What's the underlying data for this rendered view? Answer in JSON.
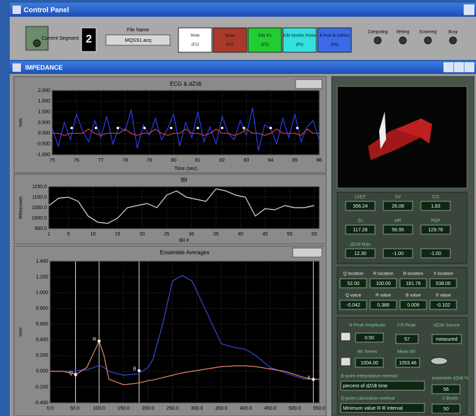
{
  "control_panel": {
    "title": "Control Panel",
    "segment_label": "Current Segment",
    "segment": "2",
    "file_name_label": "File Name",
    "file_name": "MQSS1.acq",
    "buttons": [
      {
        "label": "Write",
        "key": "(F2)",
        "color": "#ffffff"
      },
      {
        "label": "Erase",
        "key": "(F3)",
        "color": "#a83a2c"
      },
      {
        "label": "Edit X's",
        "key": "(F5)",
        "color": "#22cc33"
      },
      {
        "label": "Edit Systolic Points",
        "key": "(F6)",
        "color": "#33e0e0"
      },
      {
        "label": "R Peak & Artifact",
        "key": "(F8)",
        "color": "#3a6ae8"
      }
    ],
    "status": [
      "Computing",
      "Writing",
      "Scanning",
      "Busy"
    ]
  },
  "impedance": {
    "title": "IMPEDANCE",
    "readouts": [
      {
        "label": "LVET",
        "value": "356.24"
      },
      {
        "label": "SV",
        "value": "26.08"
      },
      {
        "label": "CO",
        "value": "1.83"
      },
      {
        "label": "Zo",
        "value": "117.28"
      },
      {
        "label": "HR",
        "value": "56.95"
      },
      {
        "label": "PEP",
        "value": "129.76"
      },
      {
        "label": "dZ/dt Max",
        "value": "12.30"
      },
      {
        "value": "-1.00"
      },
      {
        "value": "-1.00"
      }
    ],
    "locations": [
      {
        "label": "Q location",
        "value": "52.00"
      },
      {
        "label": "R location",
        "value": "100.00"
      },
      {
        "label": "B location",
        "value": "181.76"
      },
      {
        "label": "X location",
        "value": "538.00"
      },
      {
        "label": "Q value",
        "value": "-0.042"
      },
      {
        "label": "R value",
        "value": "0.386"
      },
      {
        "label": "B value",
        "value": "0.009"
      },
      {
        "label": "X value",
        "value": "-0.102"
      }
    ],
    "settings": [
      {
        "label": "R Peak Amplitude",
        "value": "0.50"
      },
      {
        "label": "# R Peak",
        "value": "57"
      },
      {
        "label": "dZ/dt Source",
        "value": "measured"
      },
      {
        "label": "IBI Series",
        "value": "1004.00"
      },
      {
        "label": "Mean IBI",
        "value": "1053.46"
      },
      {
        "label": "B-point interpolation method",
        "value": "percent of dZ/dt time"
      },
      {
        "label": "Q-point calculation method",
        "value": "Minimum value R-R interval"
      },
      {
        "label": "ensemble dZ/dt %",
        "value": "56"
      },
      {
        "label": "# Beats",
        "value": "50"
      }
    ]
  },
  "chart_data": [
    {
      "type": "line",
      "title": "ECG & dZ/dt",
      "ylabel": "Volts",
      "xlabel": "Time (sec)",
      "xlim": [
        75,
        86
      ],
      "xticks": [
        75,
        76,
        77,
        78,
        79,
        80,
        81,
        82,
        83,
        84,
        85,
        86
      ],
      "ylim": [
        -1,
        2
      ],
      "yticks": [
        {
          "value": -1,
          "label": "-1.000"
        },
        {
          "value": -0.5,
          "label": "-0.500"
        },
        {
          "value": 0,
          "label": "0.000"
        },
        {
          "value": 0.5,
          "label": "0.500"
        },
        {
          "value": 1,
          "label": "1.000"
        },
        {
          "value": 1.5,
          "label": "1.500"
        },
        {
          "value": 2,
          "label": "2.000"
        }
      ],
      "x": [
        75,
        75.25,
        75.5,
        75.75,
        76,
        76.25,
        76.5,
        76.75,
        77,
        77.25,
        77.5,
        77.75,
        78,
        78.25,
        78.5,
        78.75,
        79,
        79.25,
        79.5,
        79.75,
        80,
        80.25,
        80.5,
        80.75,
        81,
        81.25,
        81.5,
        81.75,
        82,
        82.25,
        82.5,
        82.75,
        83,
        83.25,
        83.5,
        83.75,
        84,
        84.25,
        84.5,
        84.75,
        85,
        85.25,
        85.5,
        85.75,
        86
      ],
      "series": [
        {
          "color": "#2a3cf0",
          "values": [
            0.2,
            -0.6,
            0.5,
            -0.3,
            0.9,
            0.1,
            -0.4,
            0.6,
            -0.2,
            0.8,
            -0.5,
            0.3,
            0.1,
            1.1,
            -0.7,
            0.4,
            -0.1,
            0.7,
            -0.3,
            0.2,
            0.9,
            -0.6,
            0.5,
            -0.2,
            1.0,
            -0.4,
            0.3,
            -0.5,
            0.8,
            0.0,
            -0.3,
            0.6,
            -0.1,
            1.2,
            -0.8,
            0.4,
            0.2,
            -0.5,
            0.7,
            -0.2,
            0.9,
            -0.4,
            0.3,
            0.6,
            -0.3
          ]
        },
        {
          "color": "#d04030",
          "values": [
            0,
            0,
            -0.1,
            0,
            0,
            0,
            0.2,
            0,
            -0.1,
            0,
            0,
            0,
            0.2,
            0,
            -0.1,
            0,
            0,
            0.2,
            0,
            -0.1,
            0,
            0,
            0.2,
            0,
            0,
            -0.1,
            0,
            0.2,
            0,
            0,
            -0.1,
            0,
            0.2,
            0,
            0,
            -0.1,
            0,
            0.2,
            0,
            0,
            0,
            -0.1,
            0.2,
            0,
            0
          ]
        }
      ],
      "points": {
        "color": "#ffffff",
        "x": [
          75.8,
          76.8,
          77.7,
          78.8,
          79.9,
          81.0,
          82.0,
          82.9,
          84.0,
          85.1
        ],
        "y": [
          0.25,
          0.25,
          0.25,
          0.25,
          0.25,
          0.25,
          0.25,
          0.25,
          0.25,
          0.25
        ]
      }
    },
    {
      "type": "line",
      "title": "IBI",
      "ylabel": "Milliseconds",
      "xlabel": "IBI #",
      "xlim": [
        1,
        56
      ],
      "xticks": [
        1,
        5,
        10,
        15,
        20,
        25,
        30,
        35,
        40,
        45,
        50,
        55
      ],
      "ylim": [
        950,
        1150
      ],
      "yticks": [
        {
          "value": 950,
          "label": "950.0"
        },
        {
          "value": 1000,
          "label": "1000.0"
        },
        {
          "value": 1050,
          "label": "1050.0"
        },
        {
          "value": 1100,
          "label": "1100.0"
        },
        {
          "value": 1150,
          "label": "1150.0"
        }
      ],
      "x": [
        1,
        3,
        5,
        7,
        9,
        11,
        13,
        15,
        17,
        19,
        21,
        23,
        25,
        27,
        29,
        31,
        33,
        35,
        37,
        39,
        41,
        43,
        45,
        47,
        49,
        51,
        53,
        55
      ],
      "series": [
        {
          "color": "#dddddd",
          "values": [
            1060,
            1095,
            1100,
            1080,
            1010,
            980,
            975,
            1000,
            1050,
            1060,
            1070,
            1050,
            1110,
            1130,
            1100,
            1090,
            1080,
            1140,
            1130,
            1110,
            1100,
            1010,
            1045,
            1040,
            1060,
            1050,
            1050,
            1060
          ]
        }
      ]
    },
    {
      "type": "line",
      "title": "Ensemble Averages",
      "ylabel": "Volts",
      "xlim": [
        0,
        550
      ],
      "xticks": [
        {
          "value": 0,
          "label": "0.0"
        },
        {
          "value": 50,
          "label": "50.0"
        },
        {
          "value": 100,
          "label": "100.0"
        },
        {
          "value": 150,
          "label": "150.0"
        },
        {
          "value": 200,
          "label": "200.0"
        },
        {
          "value": 250,
          "label": "250.0"
        },
        {
          "value": 300,
          "label": "300.0"
        },
        {
          "value": 350,
          "label": "350.0"
        },
        {
          "value": 400,
          "label": "400.0"
        },
        {
          "value": 450,
          "label": "450.0"
        },
        {
          "value": 500,
          "label": "500.0"
        },
        {
          "value": 550,
          "label": "550.0"
        }
      ],
      "ylim": [
        -0.4,
        1.4
      ],
      "yticks": [
        {
          "value": -0.4,
          "label": "-0.400"
        },
        {
          "value": -0.2,
          "label": "-0.200"
        },
        {
          "value": 0,
          "label": "0.000"
        },
        {
          "value": 0.2,
          "label": "0.200"
        },
        {
          "value": 0.4,
          "label": "0.400"
        },
        {
          "value": 0.6,
          "label": "0.600"
        },
        {
          "value": 0.8,
          "label": "0.800"
        },
        {
          "value": 1,
          "label": "1.000"
        },
        {
          "value": 1.2,
          "label": "1.200"
        },
        {
          "value": 1.4,
          "label": "1.400"
        }
      ],
      "x": [
        0,
        25,
        50,
        52,
        75,
        90,
        100,
        110,
        120,
        150,
        180,
        200,
        210,
        230,
        250,
        270,
        290,
        320,
        350,
        380,
        400,
        420,
        450,
        480,
        500,
        520,
        538,
        550
      ],
      "series": [
        {
          "color": "#3a48d0",
          "values": [
            0,
            0,
            0,
            0.01,
            0.02,
            0.05,
            0.08,
            0.05,
            0,
            -0.05,
            -0.03,
            0.05,
            0.15,
            0.6,
            1.15,
            1.22,
            1.15,
            0.75,
            0.35,
            0.3,
            0.28,
            0.2,
            0.05,
            -0.02,
            -0.06,
            -0.1,
            -0.1,
            -0.1
          ]
        },
        {
          "color": "#e08a6a",
          "values": [
            0,
            0,
            -0.03,
            -0.042,
            0.05,
            0.25,
            0.386,
            0.2,
            -0.1,
            -0.17,
            -0.15,
            -0.12,
            -0.11,
            -0.08,
            -0.05,
            -0.02,
            0.0,
            0.03,
            0.06,
            0.07,
            0.07,
            0.06,
            0.03,
            0.0,
            -0.04,
            -0.08,
            -0.102,
            -0.1
          ]
        }
      ],
      "markers": [
        {
          "label": "Q",
          "x": 52,
          "y": -0.042
        },
        {
          "label": "R",
          "x": 100,
          "y": 0.386
        },
        {
          "label": "B",
          "x": 181.76,
          "y": 0.009
        },
        {
          "label": "X",
          "x": 538,
          "y": -0.102
        }
      ]
    }
  ]
}
